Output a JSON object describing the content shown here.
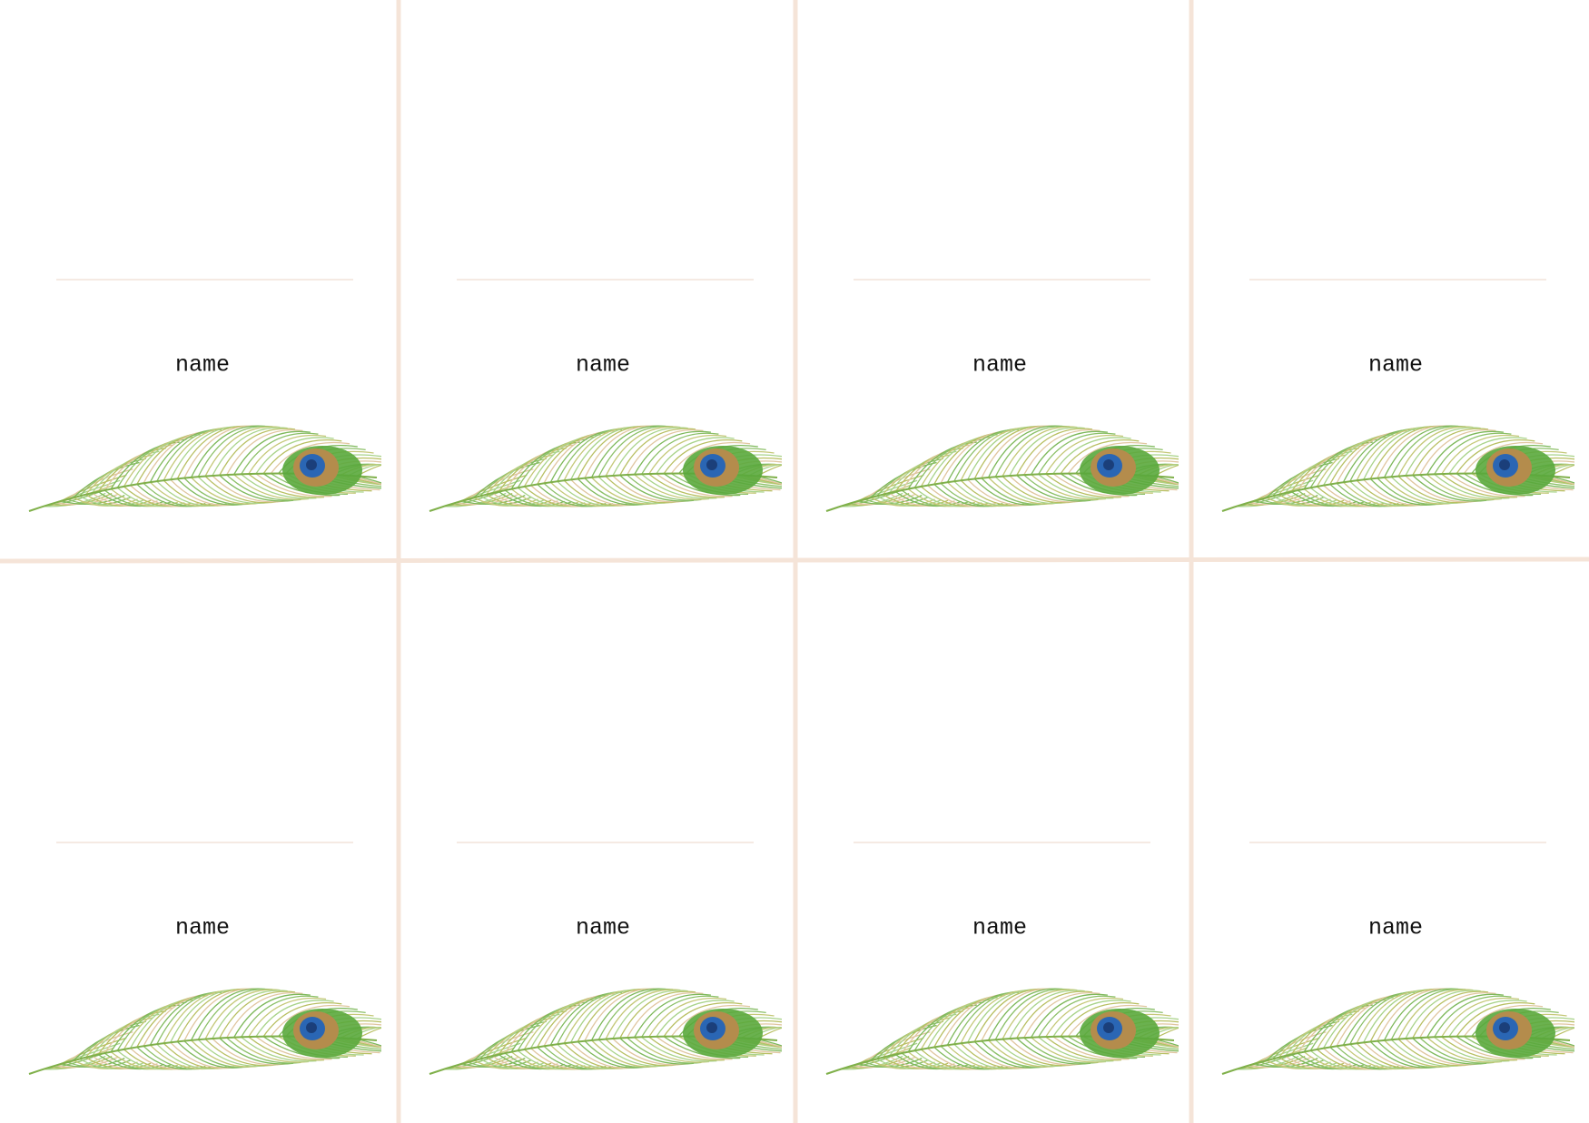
{
  "cards": [
    {
      "label": "name"
    },
    {
      "label": "name"
    },
    {
      "label": "name"
    },
    {
      "label": "name"
    },
    {
      "label": "name"
    },
    {
      "label": "name"
    },
    {
      "label": "name"
    },
    {
      "label": "name"
    }
  ]
}
